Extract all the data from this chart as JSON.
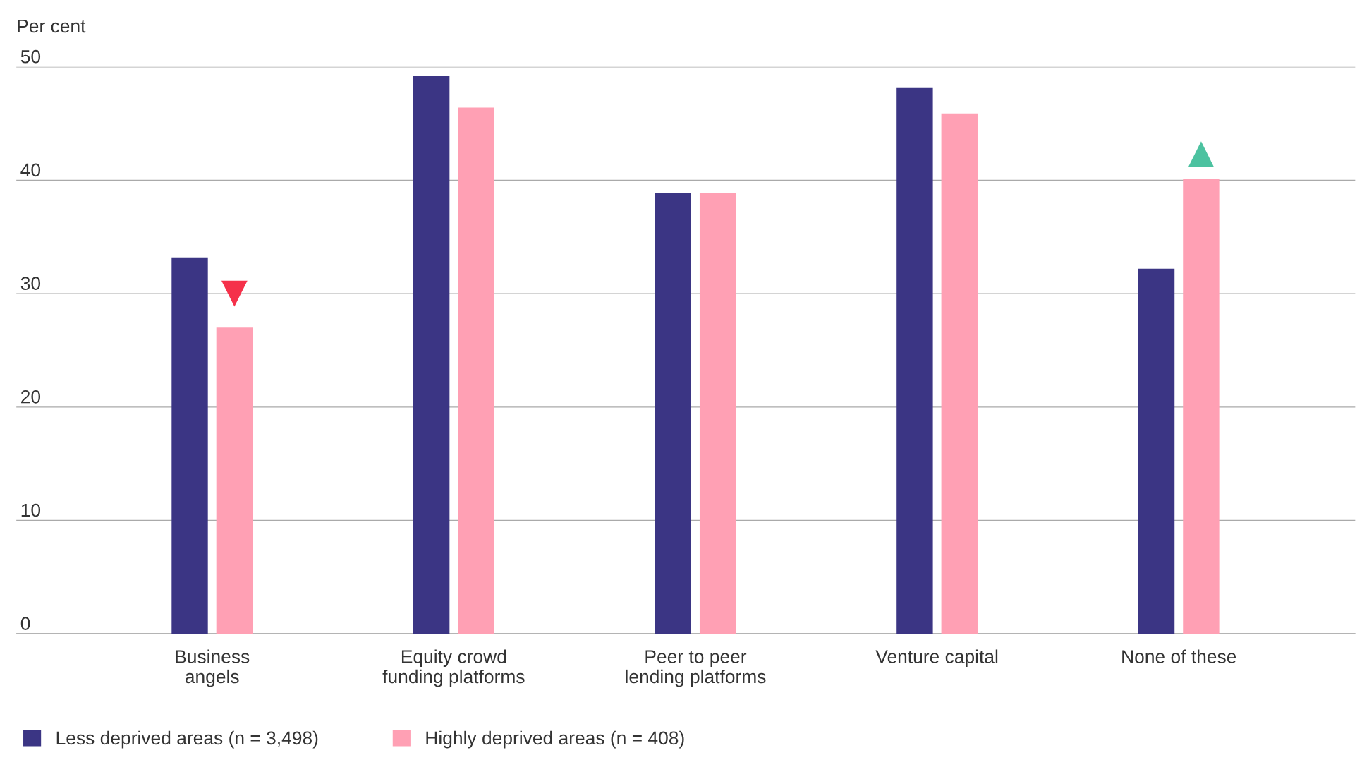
{
  "chart_data": {
    "type": "bar",
    "ylabel": "Per cent",
    "categories": [
      "Business\nangels",
      "Equity crowd\nfunding platforms",
      "Peer to peer\nlending platforms",
      "Venture capital",
      "None of these"
    ],
    "series": [
      {
        "name": "Less deprived areas (n = 3,498)",
        "color": "#3b3584",
        "values": [
          33.2,
          49.2,
          38.9,
          48.2,
          32.2
        ]
      },
      {
        "name": "Highly deprived areas (n = 408)",
        "color": "#ffa0b4",
        "values": [
          27.0,
          46.4,
          38.9,
          45.9,
          40.1
        ]
      },
      {
        "type": "scatter",
        "x": [
          "Business\nangels"
        ],
        "values": [
          30.0
        ],
        "color": "#f5314a",
        "marker": "triangle_down"
      },
      {
        "type": "scatter",
        "x": [
          "None of these"
        ],
        "values": [
          42.3
        ],
        "color": "#4cc2a0",
        "marker": "triangle"
      }
    ],
    "ylim": [
      0,
      50
    ],
    "yticks": [
      0,
      10,
      20,
      30,
      40,
      50
    ],
    "grid": "y",
    "legend": "bottom left"
  }
}
